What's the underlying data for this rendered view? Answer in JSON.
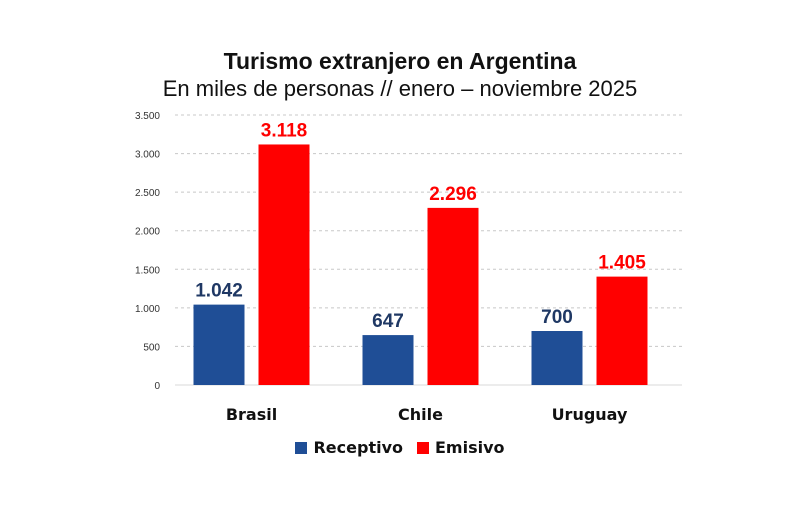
{
  "chart_data": {
    "type": "bar",
    "title": "Turismo extranjero en Argentina",
    "subtitle": "En miles de personas // enero – noviembre 2025",
    "xlabel": "",
    "ylabel": "",
    "categories": [
      "Brasil",
      "Chile",
      "Uruguay"
    ],
    "series": [
      {
        "name": "Receptivo",
        "color": "#1f4e96",
        "label_color": "#1f3864",
        "values": [
          1042,
          647,
          700
        ],
        "labels": [
          "1.042",
          "647",
          "700"
        ]
      },
      {
        "name": "Emisivo",
        "color": "#ff0000",
        "label_color": "#ff0000",
        "values": [
          3118,
          2296,
          1405
        ],
        "labels": [
          "3.118",
          "2.296",
          "1.405"
        ]
      }
    ],
    "ylim": [
      0,
      3500
    ],
    "yticks": [
      0,
      500,
      1000,
      1500,
      2000,
      2500,
      3000,
      3500
    ],
    "ytick_labels": [
      "0",
      "500",
      "1.000",
      "1.500",
      "2.000",
      "2.500",
      "3.000",
      "3.500"
    ],
    "grid": true,
    "legend_position": "bottom"
  }
}
